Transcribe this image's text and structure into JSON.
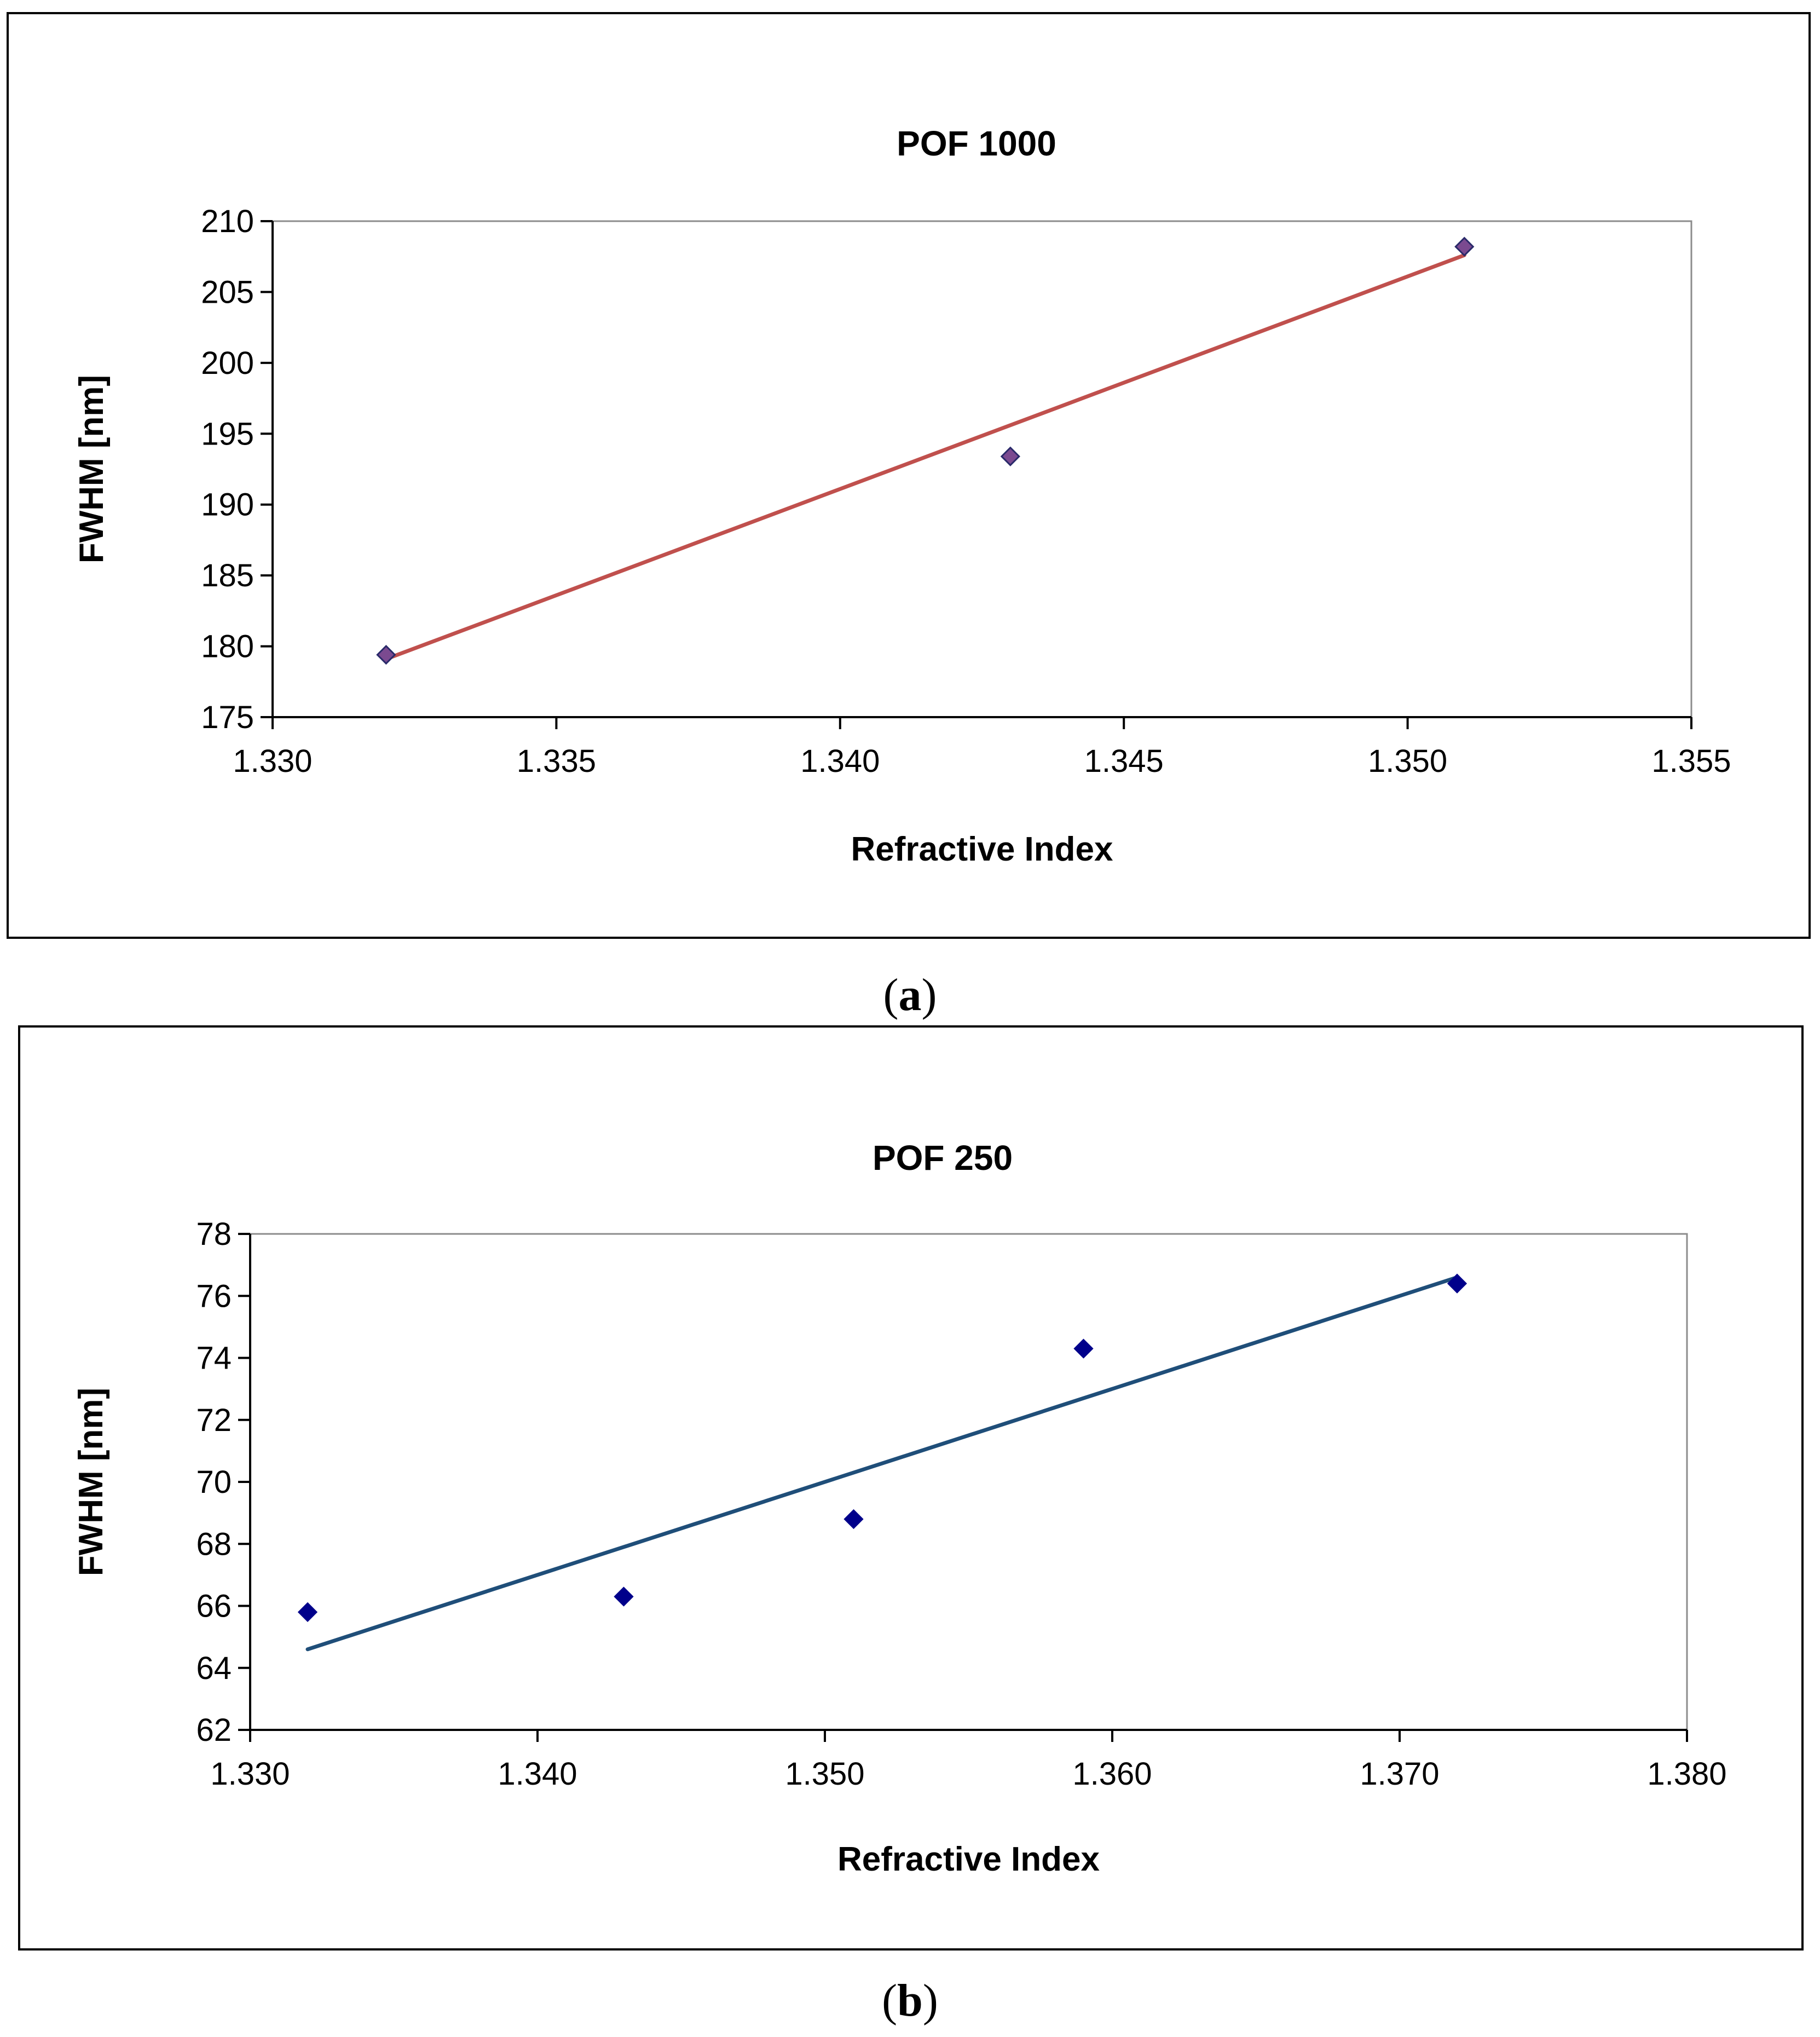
{
  "chart_data": [
    {
      "type": "scatter",
      "title": "POF 1000",
      "xlabel": "Refractive Index",
      "ylabel": "FWHM [nm]",
      "xlim": [
        1.33,
        1.355
      ],
      "ylim": [
        175,
        210
      ],
      "xticks": [
        "1.330",
        "1.335",
        "1.340",
        "1.345",
        "1.350",
        "1.355"
      ],
      "yticks": [
        "175",
        "180",
        "185",
        "190",
        "195",
        "200",
        "205",
        "210"
      ],
      "grid": false,
      "series": [
        {
          "name": "FWHM",
          "x": [
            1.332,
            1.343,
            1.351
          ],
          "y": [
            179.4,
            193.4,
            208.2
          ],
          "marker": "diamond",
          "marker_color": "#7b4a90",
          "marker_edge": "#2a2a6a"
        }
      ],
      "trendline": {
        "x": [
          1.332,
          1.351
        ],
        "y": [
          179.1,
          207.6
        ],
        "color": "#c0504d"
      },
      "caption": "a"
    },
    {
      "type": "scatter",
      "title": "POF 250",
      "xlabel": "Refractive Index",
      "ylabel": "FWHM [nm]",
      "xlim": [
        1.33,
        1.38
      ],
      "ylim": [
        62,
        78
      ],
      "xticks": [
        "1.330",
        "1.340",
        "1.350",
        "1.360",
        "1.370",
        "1.380"
      ],
      "yticks": [
        "62",
        "64",
        "66",
        "68",
        "70",
        "72",
        "74",
        "76",
        "78"
      ],
      "grid": false,
      "series": [
        {
          "name": "FWHM",
          "x": [
            1.332,
            1.343,
            1.351,
            1.359,
            1.372
          ],
          "y": [
            65.8,
            66.3,
            68.8,
            74.3,
            76.4
          ],
          "marker": "diamond",
          "marker_color": "#00008b",
          "marker_edge": "#00008b"
        }
      ],
      "trendline": {
        "x": [
          1.332,
          1.372
        ],
        "y": [
          64.6,
          76.6
        ],
        "color": "#1f4e79"
      },
      "caption": "b"
    }
  ],
  "captions": {
    "a": {
      "open": "(",
      "letter": "a",
      "close": ")"
    },
    "b": {
      "open": "(",
      "letter": "b",
      "close": ")"
    }
  }
}
